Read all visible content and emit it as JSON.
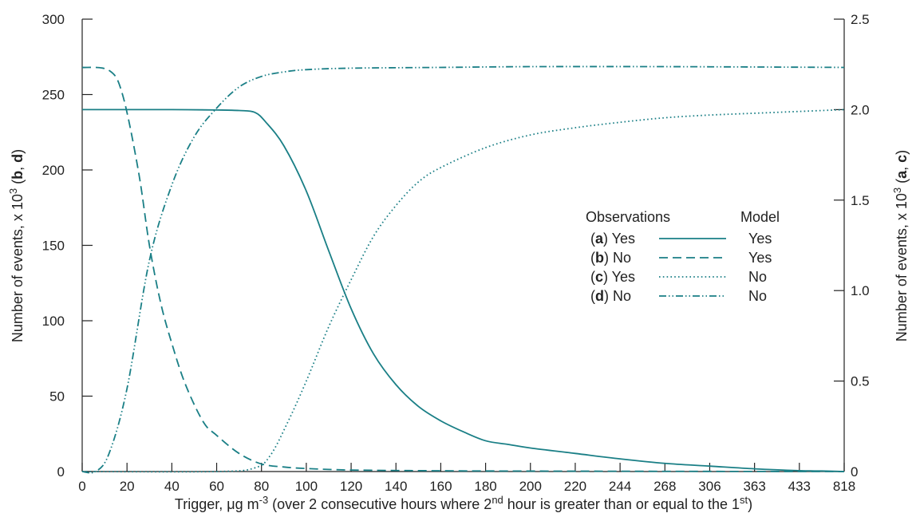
{
  "chart_data": {
    "type": "line",
    "xlabel": {
      "pre": "Trigger, μg m",
      "sup1": "-3",
      "mid": " (over 2 consecutive hours where 2",
      "sup2": "nd",
      "mid2": " hour is greater than or equal to the 1",
      "sup3": "st",
      "post": ")"
    },
    "ylabel_left": {
      "pre": "Number of events, x 10",
      "sup": "3",
      "open": " (",
      "b": "b",
      "comma": ", ",
      "d": "d",
      "close": ")"
    },
    "ylabel_right": {
      "pre": "Number of events, x 10",
      "sup": "3",
      "open": " (",
      "a": "a",
      "comma": ", ",
      "c": "c",
      "close": ")"
    },
    "x_tick_labels": [
      "0",
      "20",
      "40",
      "60",
      "80",
      "100",
      "120",
      "140",
      "160",
      "180",
      "200",
      "220",
      "244",
      "268",
      "306",
      "363",
      "433",
      "818"
    ],
    "xlim": [
      0,
      17
    ],
    "ylim_left": [
      0,
      300
    ],
    "ylim_right": [
      0,
      2.5
    ],
    "y_left_ticks": [
      0,
      50,
      100,
      150,
      200,
      250,
      300
    ],
    "y_right_ticks": [
      0,
      0.5,
      1.0,
      1.5,
      2.0,
      2.5
    ],
    "y_left_tick_labels": [
      "0",
      "50",
      "100",
      "150",
      "200",
      "250",
      "300"
    ],
    "y_right_tick_labels": [
      "0",
      "0.5",
      "1.0",
      "1.5",
      "2.0",
      "2.5"
    ],
    "colors": {
      "series": "#1a7f86",
      "axis": "#222222"
    },
    "grid": false,
    "legend": {
      "position": "right-middle",
      "header_obs": "Observations",
      "header_model": "Model",
      "entries": [
        {
          "open": "(",
          "letter": "a",
          "close": ")",
          "obs": "Yes",
          "model": "Yes",
          "dash": "solid"
        },
        {
          "open": "(",
          "letter": "b",
          "close": ")",
          "obs": "No",
          "model": "Yes",
          "dash": "dashed"
        },
        {
          "open": "(",
          "letter": "c",
          "close": ")",
          "obs": "Yes",
          "model": "No",
          "dash": "dotted"
        },
        {
          "open": "(",
          "letter": "d",
          "close": ")",
          "obs": "No",
          "model": "No",
          "dash": "dashdotdot"
        }
      ]
    },
    "series": [
      {
        "key": "a",
        "axis": "right",
        "dash": "solid",
        "points": [
          [
            0,
            2.0
          ],
          [
            1,
            2.0
          ],
          [
            2,
            2.0
          ],
          [
            3,
            1.998
          ],
          [
            3.5,
            1.995
          ],
          [
            3.85,
            1.985
          ],
          [
            4.1,
            1.93
          ],
          [
            4.5,
            1.8
          ],
          [
            5,
            1.55
          ],
          [
            5.5,
            1.22
          ],
          [
            6,
            0.9
          ],
          [
            6.5,
            0.65
          ],
          [
            7,
            0.48
          ],
          [
            7.5,
            0.36
          ],
          [
            8,
            0.28
          ],
          [
            8.5,
            0.22
          ],
          [
            9,
            0.17
          ],
          [
            9.5,
            0.15
          ],
          [
            10,
            0.13
          ],
          [
            11,
            0.1
          ],
          [
            12,
            0.07
          ],
          [
            13,
            0.045
          ],
          [
            14,
            0.03
          ],
          [
            15,
            0.015
          ],
          [
            16,
            0.005
          ],
          [
            16.5,
            0.003
          ],
          [
            17,
            0
          ]
        ]
      },
      {
        "key": "b",
        "axis": "left",
        "dash": "dashed",
        "points": [
          [
            0,
            268
          ],
          [
            0.6,
            266
          ],
          [
            0.9,
            250
          ],
          [
            1.25,
            200
          ],
          [
            1.5,
            150
          ],
          [
            1.75,
            112
          ],
          [
            2,
            85
          ],
          [
            2.3,
            58
          ],
          [
            2.7,
            33
          ],
          [
            3,
            24
          ],
          [
            3.5,
            12
          ],
          [
            4,
            5
          ],
          [
            4.5,
            3
          ],
          [
            5,
            2
          ],
          [
            6,
            1
          ],
          [
            8,
            0.5
          ],
          [
            10,
            0.3
          ],
          [
            14,
            0.1
          ],
          [
            17,
            0
          ]
        ]
      },
      {
        "key": "c",
        "axis": "right",
        "dash": "dotted",
        "points": [
          [
            0,
            0
          ],
          [
            3,
            0
          ],
          [
            3.85,
            0.02
          ],
          [
            4.2,
            0.09
          ],
          [
            4.6,
            0.28
          ],
          [
            5,
            0.5
          ],
          [
            5.5,
            0.8
          ],
          [
            6,
            1.06
          ],
          [
            6.5,
            1.3
          ],
          [
            7,
            1.47
          ],
          [
            7.5,
            1.6
          ],
          [
            8,
            1.68
          ],
          [
            9,
            1.79
          ],
          [
            10,
            1.86
          ],
          [
            11,
            1.9
          ],
          [
            12,
            1.93
          ],
          [
            13,
            1.955
          ],
          [
            14,
            1.97
          ],
          [
            15,
            1.98
          ],
          [
            16,
            1.99
          ],
          [
            17,
            2.0
          ]
        ]
      },
      {
        "key": "d",
        "axis": "left",
        "dash": "dashdotdot",
        "points": [
          [
            0,
            0
          ],
          [
            0.3,
            0
          ],
          [
            0.6,
            12
          ],
          [
            1,
            55
          ],
          [
            1.5,
            140
          ],
          [
            2,
            190
          ],
          [
            2.5,
            222
          ],
          [
            3,
            241
          ],
          [
            3.5,
            255
          ],
          [
            4,
            262
          ],
          [
            4.5,
            265
          ],
          [
            5,
            266.5
          ],
          [
            6,
            267.5
          ],
          [
            8,
            268
          ],
          [
            10,
            268.5
          ],
          [
            13,
            268.5
          ],
          [
            17,
            268
          ]
        ]
      }
    ]
  }
}
